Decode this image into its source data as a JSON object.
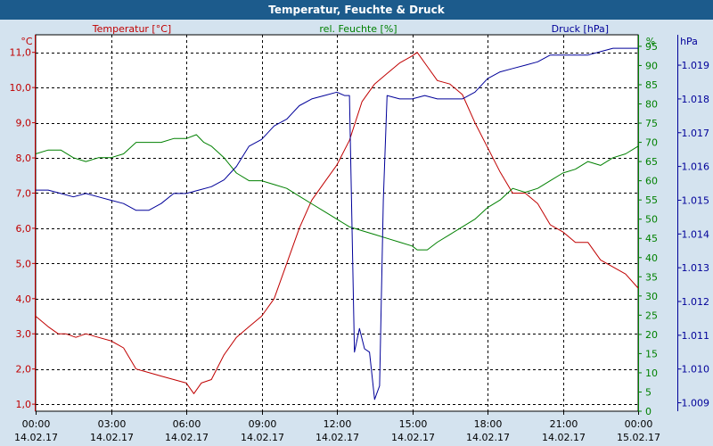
{
  "window": {
    "title": "Temperatur, Feuchte & Druck"
  },
  "colors": {
    "temperature": "#c00000",
    "humidity": "#008000",
    "pressure": "#000099",
    "background": "#d4e3ef",
    "plot_background": "#ffffff",
    "title_bar": "#1c5b8c"
  },
  "chart_data": {
    "type": "line",
    "title": "Temperatur, Feuchte & Druck",
    "grid": true,
    "legend_placement": "top",
    "x_labels": [
      {
        "time": "00:00",
        "date": "14.02.17"
      },
      {
        "time": "03:00",
        "date": "14.02.17"
      },
      {
        "time": "06:00",
        "date": "14.02.17"
      },
      {
        "time": "09:00",
        "date": "14.02.17"
      },
      {
        "time": "12:00",
        "date": "14.02.17"
      },
      {
        "time": "15:00",
        "date": "14.02.17"
      },
      {
        "time": "18:00",
        "date": "14.02.17"
      },
      {
        "time": "21:00",
        "date": "14.02.17"
      },
      {
        "time": "00:00",
        "date": "15.02.17"
      }
    ],
    "xlim": [
      0,
      24
    ],
    "axes": {
      "temperature": {
        "unit": "°C",
        "ylim": [
          0.8,
          11.5
        ],
        "ticks": [
          1.0,
          2.0,
          3.0,
          4.0,
          5.0,
          6.0,
          7.0,
          8.0,
          9.0,
          10.0,
          11.0
        ],
        "tick_labels": [
          "1,0",
          "2,0",
          "3,0",
          "4,0",
          "5,0",
          "6,0",
          "7,0",
          "8,0",
          "9,0",
          "10,0",
          "11,0"
        ],
        "side": "left"
      },
      "humidity": {
        "unit": "%",
        "ylim": [
          0,
          98
        ],
        "ticks": [
          0,
          5,
          10,
          15,
          20,
          25,
          30,
          35,
          40,
          45,
          50,
          55,
          60,
          65,
          70,
          75,
          80,
          85,
          90,
          95
        ],
        "tick_labels": [
          "0",
          "5",
          "10",
          "15",
          "20",
          "25",
          "30",
          "35",
          "40",
          "45",
          "50",
          "55",
          "60",
          "65",
          "70",
          "75",
          "80",
          "85",
          "90",
          "95"
        ],
        "side": "right"
      },
      "pressure": {
        "unit": "hPa",
        "ylim": [
          1008.75,
          1019.9
        ],
        "ticks": [
          1009,
          1010,
          1011,
          1012,
          1013,
          1014,
          1015,
          1016,
          1017,
          1018,
          1019
        ],
        "tick_labels": [
          "1.009",
          "1.010",
          "1.011",
          "1.012",
          "1.013",
          "1.014",
          "1.015",
          "1.016",
          "1.017",
          "1.018",
          "1.019"
        ],
        "side": "far-right"
      }
    },
    "series": [
      {
        "name": "Temperatur [°C]",
        "axis": "temperature",
        "x": [
          0,
          0.5,
          0.9,
          1.2,
          1.6,
          2.0,
          2.5,
          3.0,
          3.5,
          4.0,
          4.5,
          5.0,
          5.5,
          6.0,
          6.3,
          6.6,
          7.0,
          7.5,
          8.0,
          8.5,
          9.0,
          9.5,
          10.0,
          10.5,
          11.0,
          11.5,
          12.0,
          12.5,
          13.0,
          13.5,
          14.0,
          14.5,
          15.0,
          15.2,
          15.6,
          16.0,
          16.5,
          17.0,
          17.5,
          18.0,
          18.5,
          19.0,
          19.5,
          20.0,
          20.5,
          21.0,
          21.5,
          22.0,
          22.5,
          23.0,
          23.5,
          24.0
        ],
        "values": [
          3.5,
          3.2,
          3.0,
          3.0,
          2.9,
          3.0,
          2.9,
          2.8,
          2.6,
          2.0,
          1.9,
          1.8,
          1.7,
          1.6,
          1.3,
          1.6,
          1.7,
          2.4,
          2.9,
          3.2,
          3.5,
          4.0,
          5.0,
          6.0,
          6.8,
          7.3,
          7.8,
          8.5,
          9.6,
          10.1,
          10.4,
          10.7,
          10.9,
          11.0,
          10.6,
          10.2,
          10.1,
          9.8,
          9.0,
          8.3,
          7.6,
          7.0,
          7.0,
          6.7,
          6.1,
          5.9,
          5.6,
          5.6,
          5.1,
          4.9,
          4.7,
          4.3
        ]
      },
      {
        "name": "rel. Feuchte [%]",
        "axis": "humidity",
        "x": [
          0,
          0.5,
          1.0,
          1.5,
          2.0,
          2.5,
          3.0,
          3.5,
          4.0,
          4.5,
          5.0,
          5.5,
          6.0,
          6.4,
          6.7,
          7.0,
          7.5,
          8.0,
          8.5,
          9.0,
          9.5,
          10.0,
          10.5,
          11.0,
          11.5,
          12.0,
          12.5,
          13.0,
          13.5,
          14.0,
          14.5,
          15.0,
          15.2,
          15.6,
          16.0,
          16.5,
          17.0,
          17.5,
          18.0,
          18.5,
          19.0,
          19.5,
          20.0,
          20.5,
          21.0,
          21.5,
          22.0,
          22.5,
          23.0,
          23.5,
          24.0
        ],
        "values": [
          67,
          68,
          68,
          66,
          65,
          66,
          66,
          67,
          70,
          70,
          70,
          71,
          71,
          72,
          70,
          69,
          66,
          62,
          60,
          60,
          59,
          58,
          56,
          54,
          52,
          50,
          48,
          47,
          46,
          45,
          44,
          43,
          42,
          42,
          44,
          46,
          48,
          50,
          53,
          55,
          58,
          57,
          58,
          60,
          62,
          63,
          65,
          64,
          66,
          67,
          69
        ]
      },
      {
        "name": "Druck [hPa]",
        "axis": "pressure",
        "x": [
          0,
          0.5,
          1.0,
          1.5,
          2.0,
          2.5,
          3.0,
          3.5,
          4.0,
          4.5,
          5.0,
          5.5,
          6.0,
          6.5,
          7.0,
          7.5,
          8.0,
          8.5,
          9.0,
          9.5,
          10.0,
          10.5,
          11.0,
          11.5,
          12.0,
          12.3,
          12.5,
          12.7,
          12.9,
          13.1,
          13.3,
          13.5,
          13.7,
          13.85,
          14.0,
          14.5,
          15.0,
          15.5,
          16.0,
          16.5,
          17.0,
          17.5,
          18.0,
          18.5,
          19.0,
          19.5,
          20.0,
          20.5,
          21.0,
          21.5,
          22.0,
          22.5,
          23.0,
          23.5,
          24.0
        ],
        "values": [
          1015.3,
          1015.3,
          1015.2,
          1015.1,
          1015.2,
          1015.1,
          1015.0,
          1014.9,
          1014.7,
          1014.7,
          1014.9,
          1015.2,
          1015.2,
          1015.3,
          1015.4,
          1015.6,
          1016.0,
          1016.6,
          1016.8,
          1017.2,
          1017.4,
          1017.8,
          1018.0,
          1018.1,
          1018.2,
          1018.1,
          1018.1,
          1010.5,
          1011.2,
          1010.6,
          1010.5,
          1009.1,
          1009.5,
          1015.0,
          1018.1,
          1018.0,
          1018.0,
          1018.1,
          1018.0,
          1018.0,
          1018.0,
          1018.2,
          1018.6,
          1018.8,
          1018.9,
          1019.0,
          1019.1,
          1019.3,
          1019.3,
          1019.3,
          1019.3,
          1019.4,
          1019.5,
          1019.5,
          1019.5
        ]
      }
    ]
  }
}
